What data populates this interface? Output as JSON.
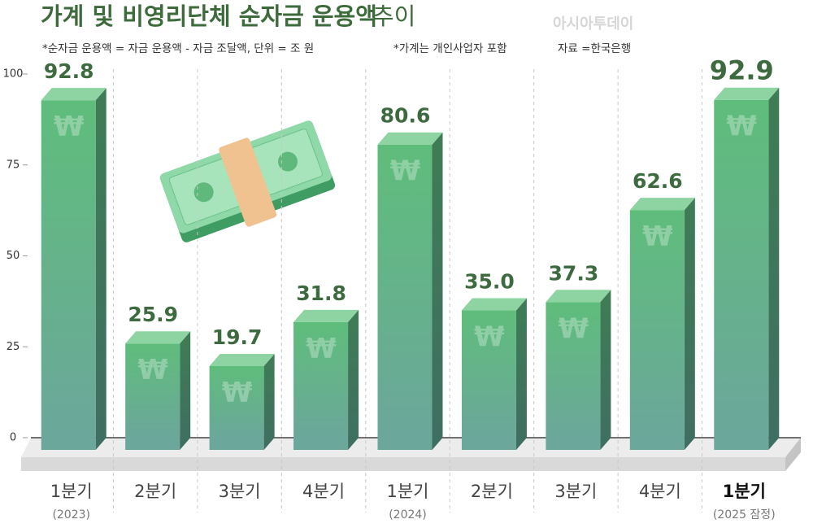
{
  "chart_data": {
    "type": "bar",
    "title": "가계 및 비영리단체 순자금 운용액",
    "title_suffix": "추이",
    "notes": [
      "*순자금 운용액 = 자금 운용액 - 자금 조달액, 단위 = 조 원",
      "*가계는 개인사업자 포함"
    ],
    "source": "자료 =한국은행",
    "watermark": "아시아투데이",
    "bar_symbol": "₩",
    "categories": [
      "1분기",
      "2분기",
      "3분기",
      "4분기",
      "1분기",
      "2분기",
      "3분기",
      "4분기",
      "1분기"
    ],
    "category_notes": [
      "(2023)",
      null,
      null,
      null,
      "(2024)",
      null,
      null,
      null,
      "(2025 잠정)"
    ],
    "values": [
      92.8,
      25.9,
      19.7,
      31.8,
      80.6,
      35.0,
      37.3,
      62.6,
      92.9
    ],
    "value_labels": [
      "92.8",
      "25.9",
      "19.7",
      "31.8",
      "80.6",
      "35.0",
      "37.3",
      "62.6",
      "92.9"
    ],
    "color": "#5fb97c",
    "ylim": [
      0,
      100
    ],
    "yticks": [
      0,
      25,
      50,
      75,
      100
    ]
  }
}
